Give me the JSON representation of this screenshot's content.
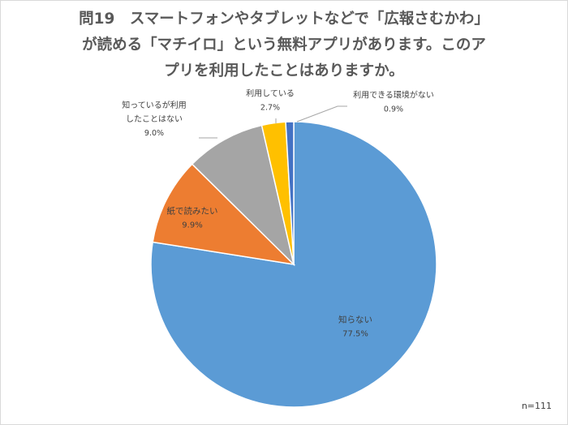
{
  "title_lines": [
    "問19　スマートフォンやタブレットなどで「広報さむかわ」",
    "が読める「マチイロ」という無料アプリがあります。このア",
    "プリを利用したことはありますか。"
  ],
  "sample_size": "n=111",
  "chart_data": {
    "type": "pie",
    "title": "問19　スマートフォンやタブレットなどで「広報さむかわ」が読める「マチイロ」という無料アプリがあります。このアプリを利用したことはありますか。",
    "start_angle_deg": 0,
    "direction": "clockwise",
    "slices": [
      {
        "label": "知らない",
        "value": 77.5,
        "value_label": "77.5%",
        "color": "#5b9bd5"
      },
      {
        "label": "紙で読みたい",
        "value": 9.9,
        "value_label": "9.9%",
        "color": "#ed7d31"
      },
      {
        "label": "知っているが利用したことはない",
        "value": 9.0,
        "value_label": "9.0%",
        "color": "#a5a5a5"
      },
      {
        "label": "利用している",
        "value": 2.7,
        "value_label": "2.7%",
        "color": "#ffc000"
      },
      {
        "label": "利用できる環境がない",
        "value": 0.9,
        "value_label": "0.9%",
        "color": "#4472c4"
      }
    ]
  }
}
